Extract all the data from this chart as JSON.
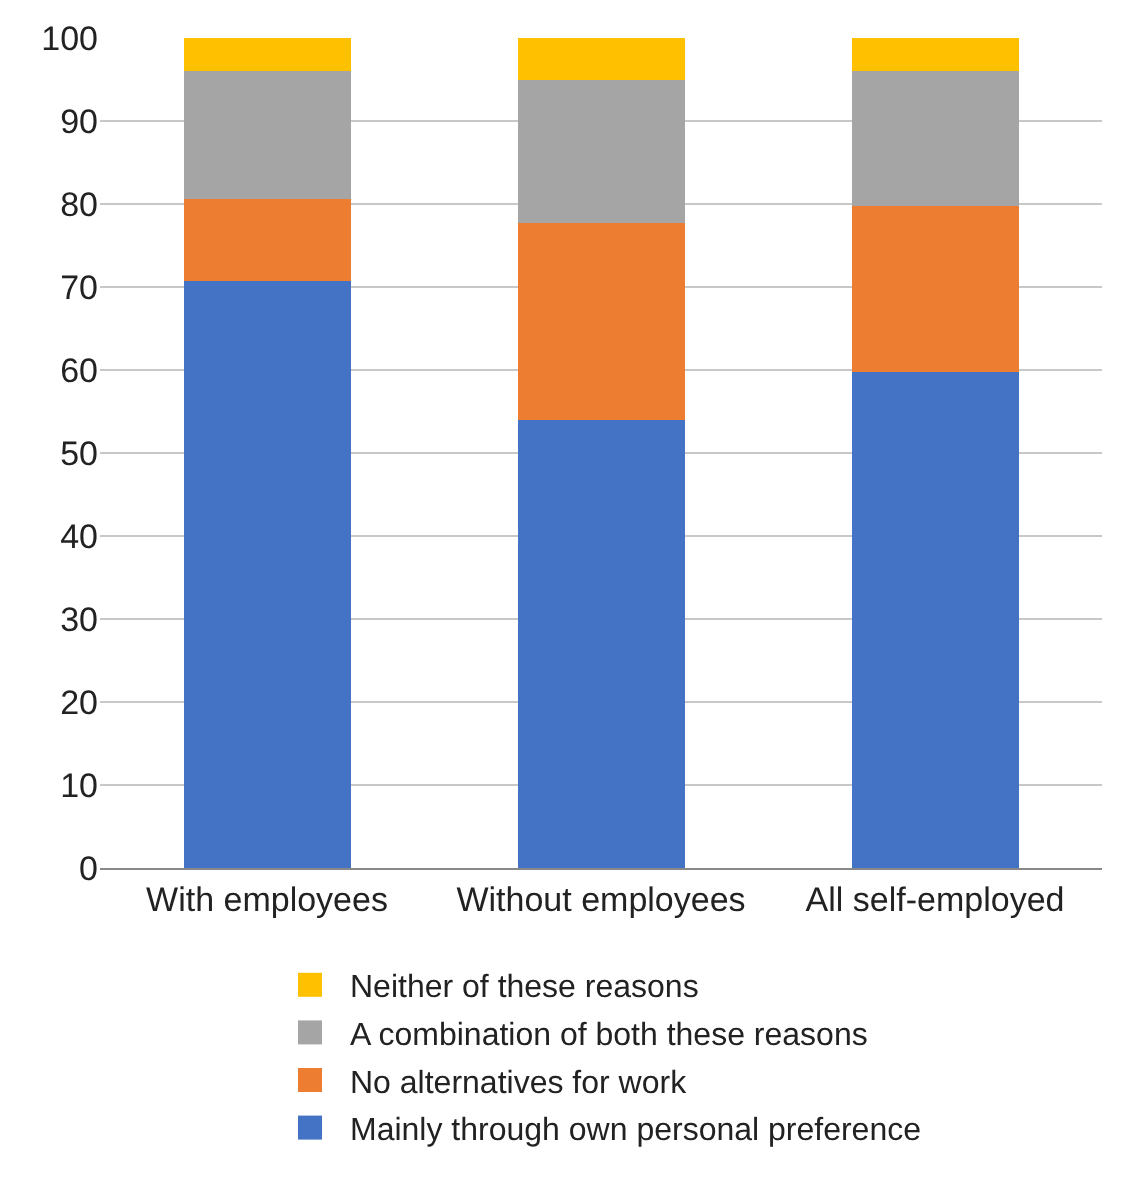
{
  "chart_data": {
    "type": "bar",
    "stacked": true,
    "categories": [
      "With employees",
      "Without employees",
      "All self-employed"
    ],
    "series": [
      {
        "name": "Mainly through own personal preference",
        "color": "#4472c4",
        "values": [
          70.7,
          54,
          59.8
        ]
      },
      {
        "name": "No alternatives for work",
        "color": "#ed7d31",
        "values": [
          9.9,
          23.7,
          20
        ]
      },
      {
        "name": "A combination of both these reasons",
        "color": "#a5a5a5",
        "values": [
          15.4,
          17.3,
          16.2
        ]
      },
      {
        "name": "Neither of these reasons",
        "color": "#ffc000",
        "values": [
          4,
          5,
          4
        ]
      }
    ],
    "ylim": [
      0,
      100
    ],
    "yticks": [
      0,
      10,
      20,
      30,
      40,
      50,
      60,
      70,
      80,
      90,
      100
    ],
    "grid": "y",
    "legend": "bottom"
  }
}
